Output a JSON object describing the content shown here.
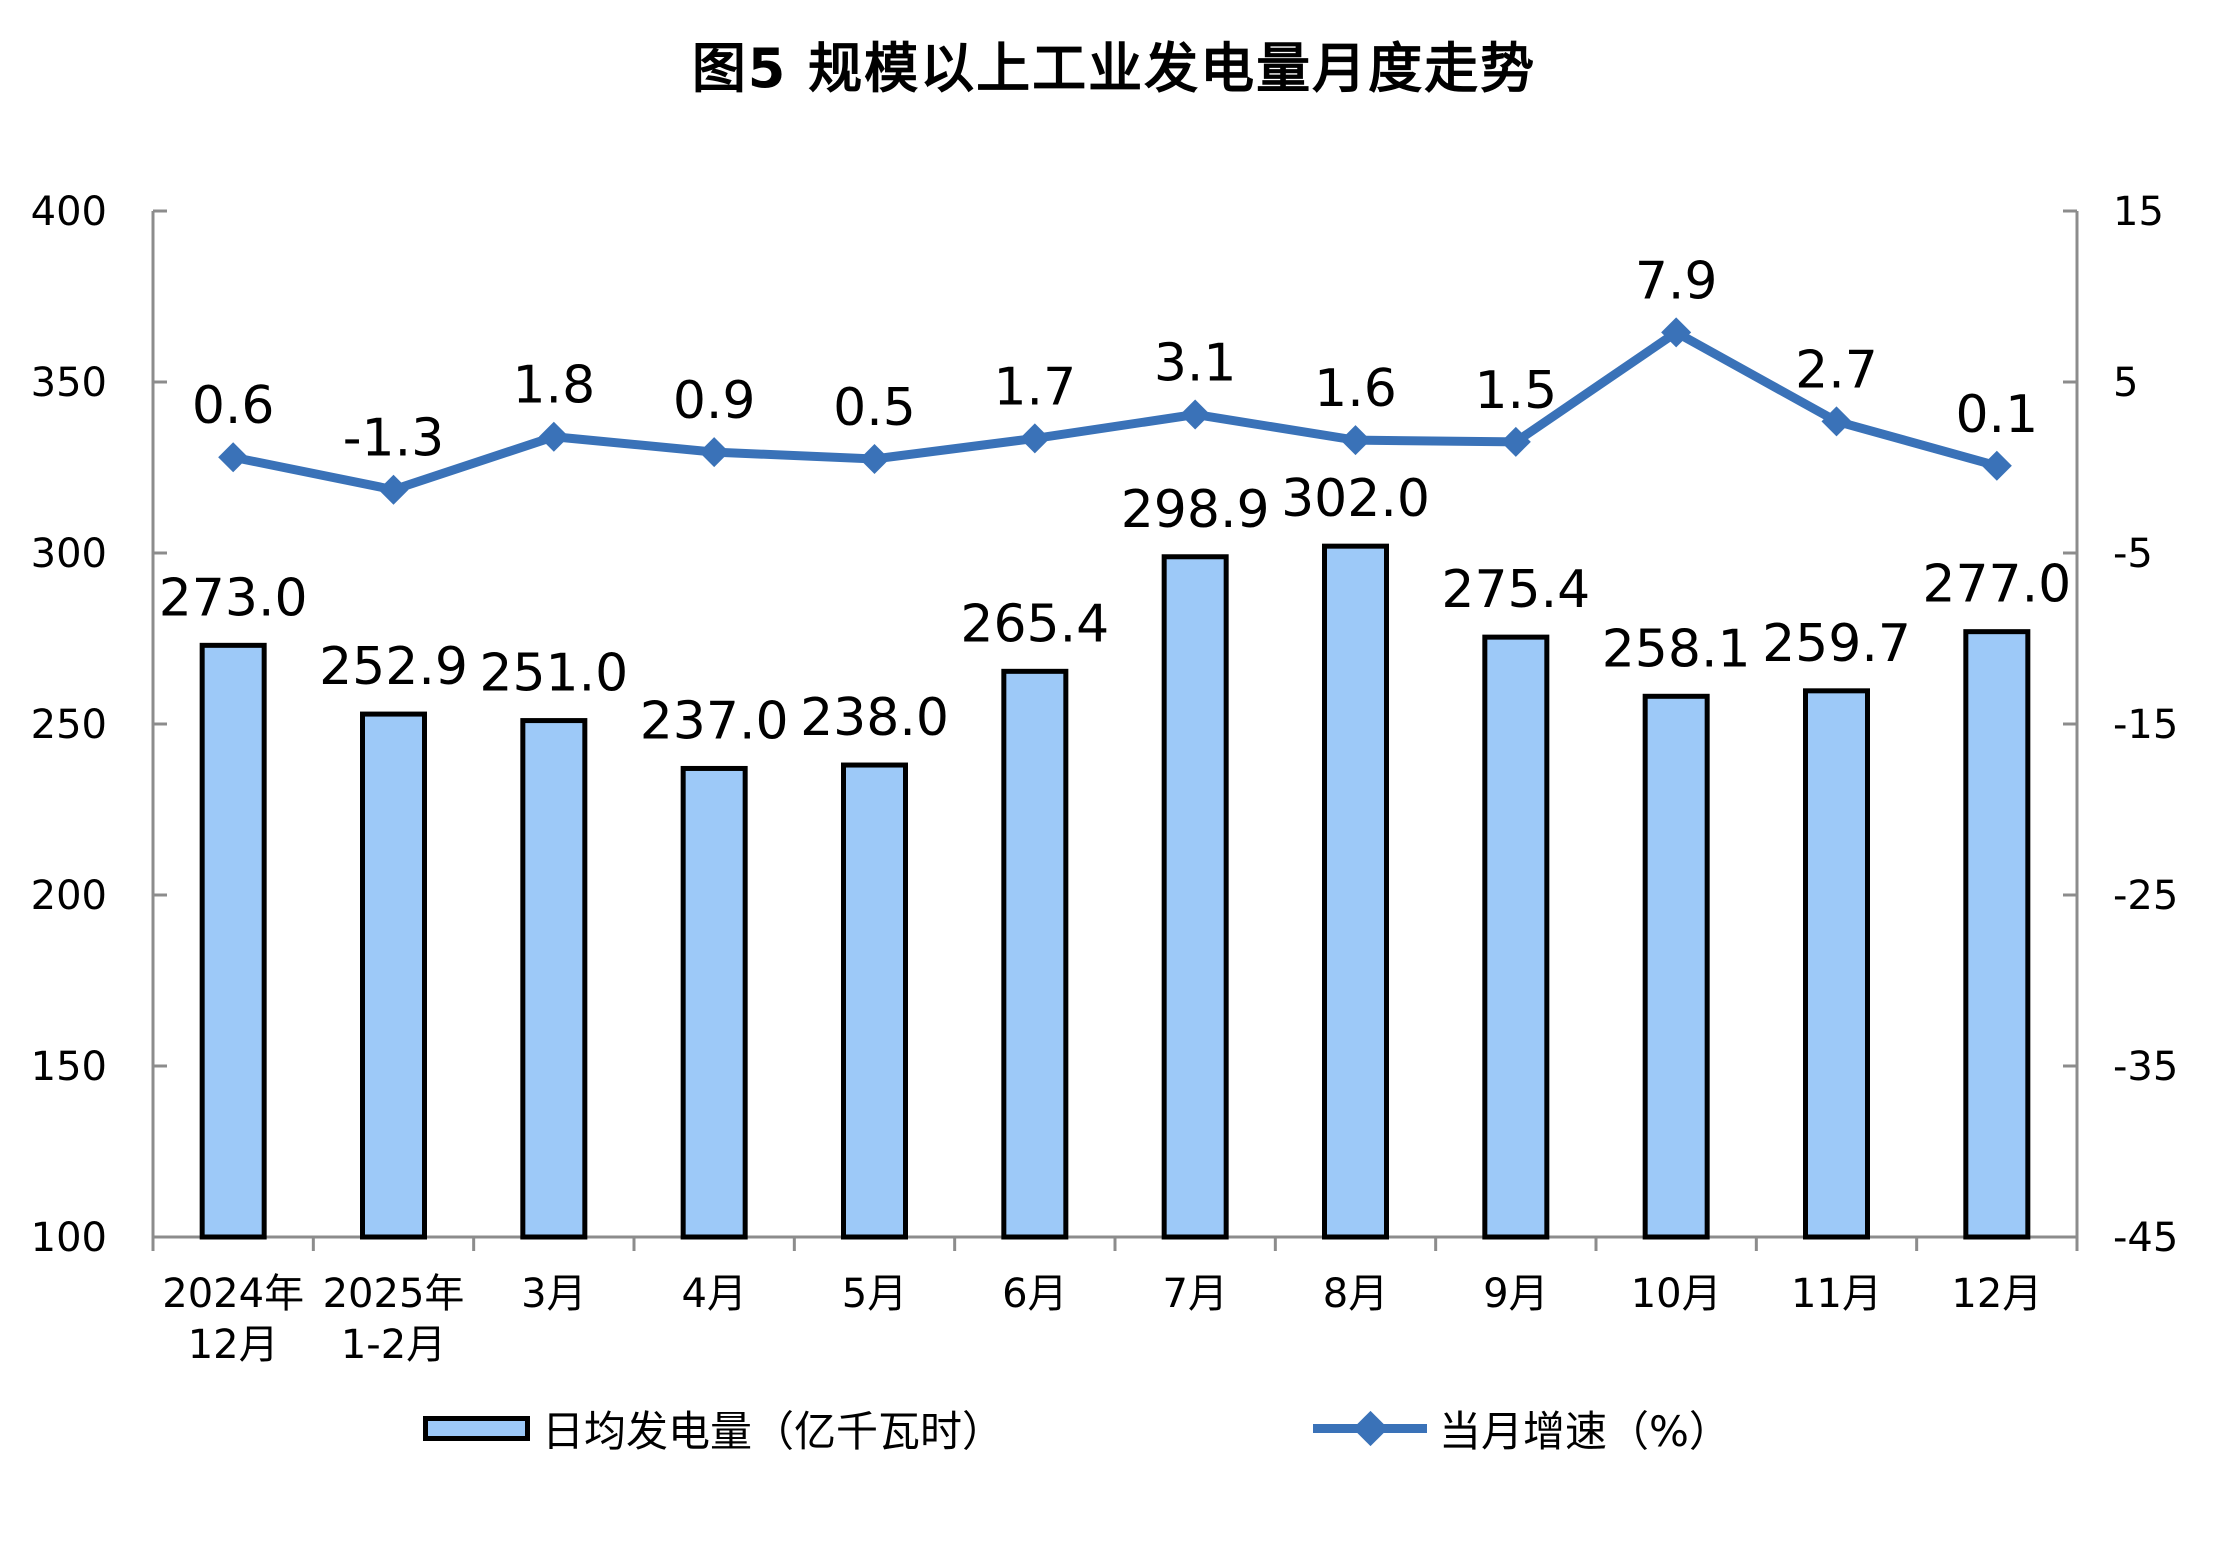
{
  "title": "图5 规模以上工业发电量月度走势",
  "colors": {
    "bar_fill": "#9DC9F8",
    "bar_border": "#000000",
    "line": "#3A72B8",
    "axis": "#8C8C8C",
    "text": "#000000"
  },
  "legend": {
    "bar_label": "日均发电量（亿千瓦时）",
    "line_label": "当月增速（%）"
  },
  "chart_data": {
    "type": "bar+line",
    "title": "图5 规模以上工业发电量月度走势",
    "categories": [
      [
        "2024年",
        "12月"
      ],
      [
        "2025年",
        "1-2月"
      ],
      [
        "3月"
      ],
      [
        "4月"
      ],
      [
        "5月"
      ],
      [
        "6月"
      ],
      [
        "7月"
      ],
      [
        "8月"
      ],
      [
        "9月"
      ],
      [
        "10月"
      ],
      [
        "11月"
      ],
      [
        "12月"
      ]
    ],
    "series": [
      {
        "name": "日均发电量（亿千瓦时）",
        "type": "bar",
        "axis": "left",
        "values": [
          273.0,
          252.9,
          251.0,
          237.0,
          238.0,
          265.4,
          298.9,
          302.0,
          275.4,
          258.1,
          259.7,
          277.0
        ]
      },
      {
        "name": "当月增速（%）",
        "type": "line",
        "axis": "right",
        "values": [
          0.6,
          -1.3,
          1.8,
          0.9,
          0.5,
          1.7,
          3.1,
          1.6,
          1.5,
          7.9,
          2.7,
          0.1
        ]
      }
    ],
    "left_axis": {
      "min": 100,
      "max": 400,
      "tick_step": 50,
      "tick_labels": [
        "100",
        "150",
        "200",
        "250",
        "300",
        "350",
        "400"
      ]
    },
    "right_axis": {
      "min": -45,
      "max": 15,
      "tick_step": 10,
      "tick_labels": [
        "-45",
        "-35",
        "-25",
        "-15",
        "-5",
        "5",
        "15"
      ]
    },
    "grid": false,
    "legend_position": "bottom"
  }
}
